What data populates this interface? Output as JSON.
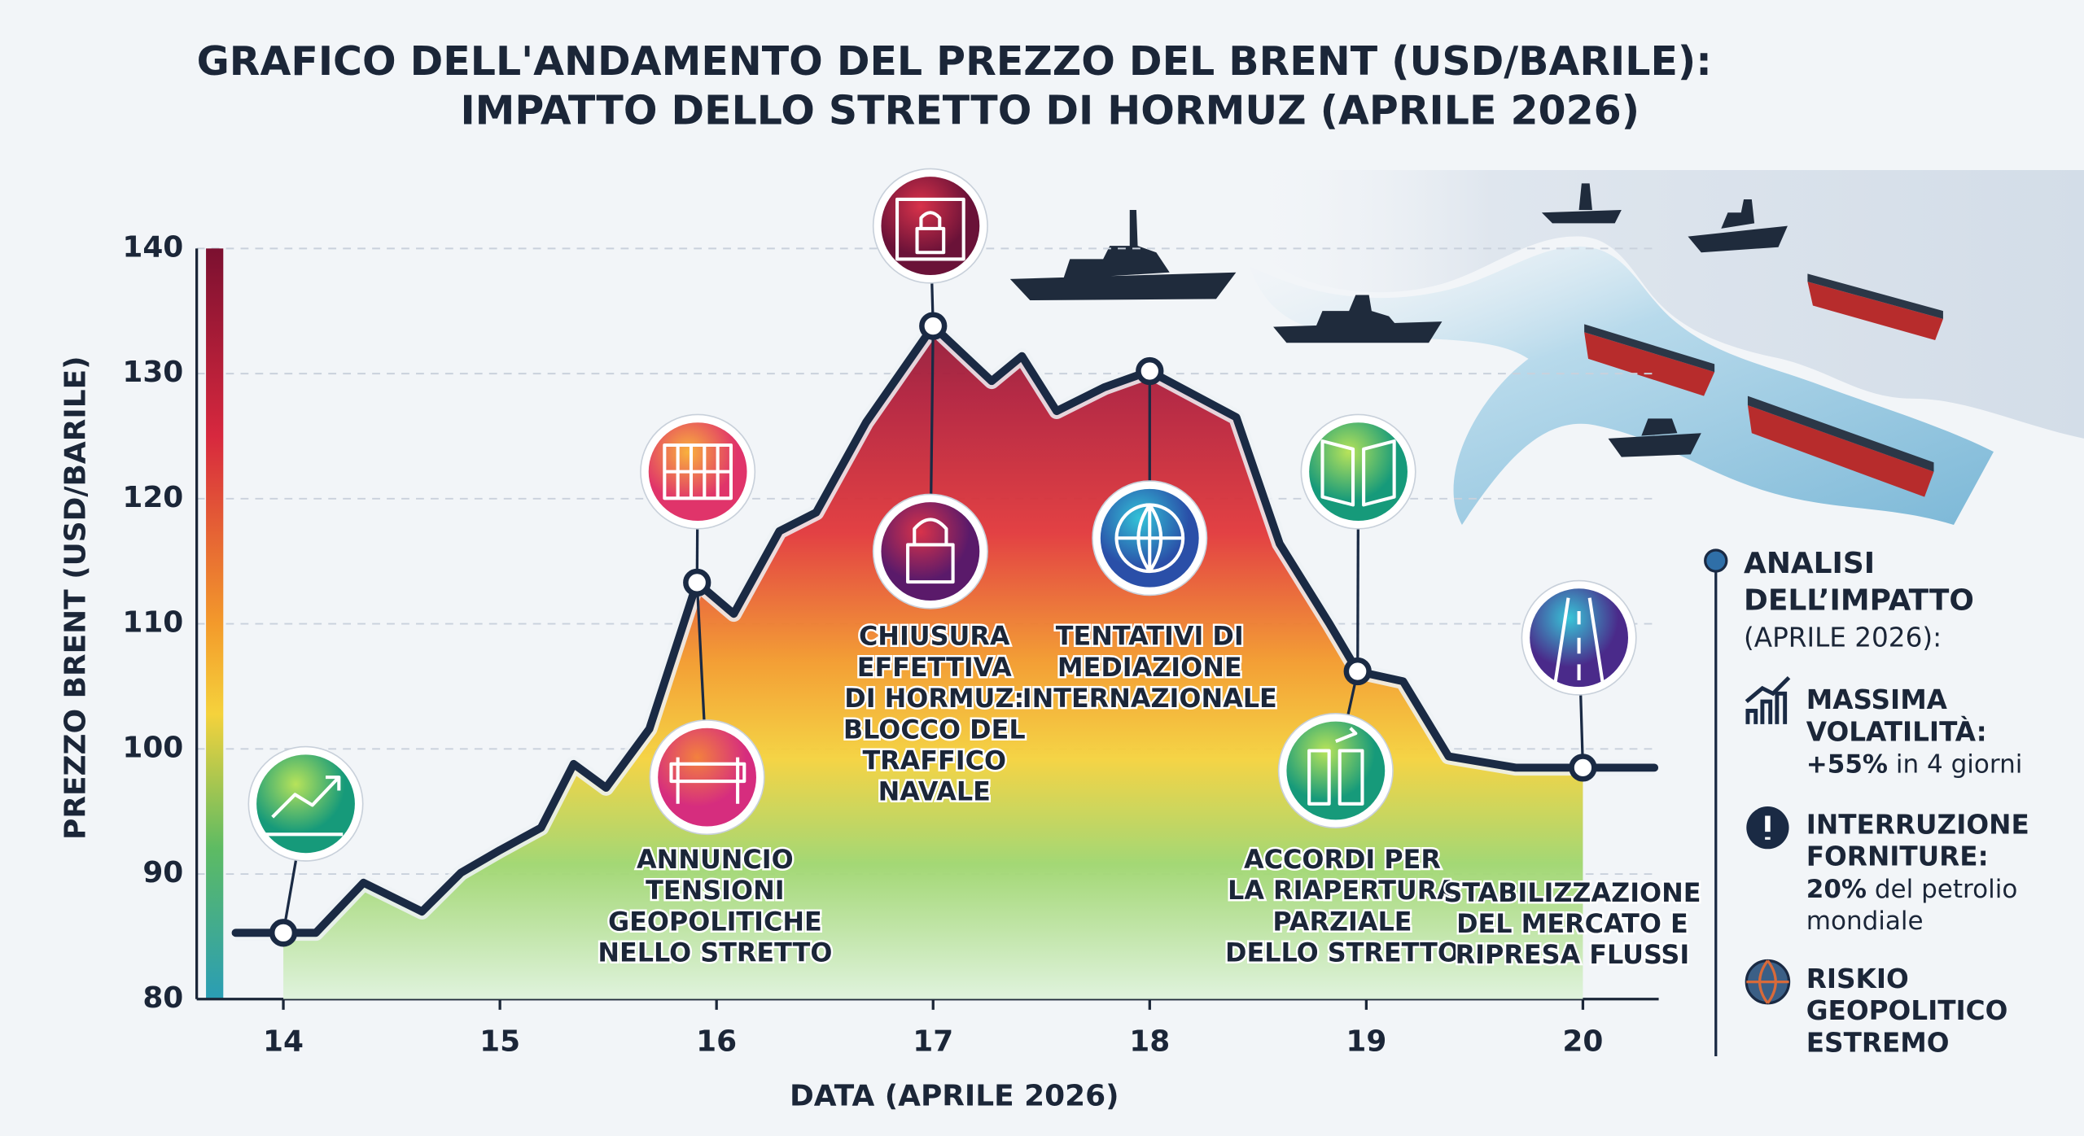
{
  "chart_data": {
    "type": "line",
    "title": [
      "GRAFICO DELL'ANDAMENTO DEL PREZZO DEL BRENT (USD/BARILE):",
      "IMPATTO DELLO STRETTO DI HORMUZ (APRILE 2026)"
    ],
    "x_label": "DATA (APRILE 2026)",
    "y_label": "PREZZO BRENT (USD/BARILE)",
    "x": [
      13.78,
      14,
      14.15,
      14.37,
      14.64,
      14.82,
      15,
      15.19,
      15.34,
      15.49,
      15.69,
      15.91,
      16.08,
      16.29,
      16.46,
      16.69,
      17,
      17.27,
      17.41,
      17.57,
      17.79,
      18,
      18.4,
      18.6,
      18.83,
      18.96,
      19.17,
      19.38,
      19.69,
      20,
      20.33
    ],
    "values": [
      85.3,
      85.3,
      85.3,
      89.3,
      87.0,
      90.1,
      91.9,
      93.7,
      98.8,
      96.9,
      101.6,
      113.3,
      110.8,
      117.4,
      118.9,
      126.1,
      133.8,
      129.4,
      131.4,
      127.0,
      128.9,
      130.2,
      126.5,
      116.4,
      110.0,
      106.2,
      105.4,
      99.4,
      98.5,
      98.5,
      98.5
    ],
    "color": "#1a2a44",
    "xlim": [
      13.6,
      20.35
    ],
    "xticks": [
      14,
      15,
      16,
      17,
      18,
      19,
      20
    ],
    "ylim": [
      80,
      140
    ],
    "yticks": [
      80,
      90,
      100,
      110,
      120,
      130,
      140
    ],
    "grid": true,
    "annotations": [
      [
        "ANNUNCIO",
        "TENSIONI",
        "GEOPOLITICHE",
        "NELLO STRETTO"
      ],
      [
        "CHIUSURA",
        "EFFETTIVA",
        "DI HORMUZ:",
        "BLOCCO DEL",
        "TRAFFICO",
        "NAVALE"
      ],
      [
        "TENTATIVI DI",
        "MEDIAZIONE",
        "INTERNAZIONALE"
      ],
      [
        "ACCORDI PER",
        "LA RIAPERTURA",
        "PARZIALE",
        "DELLO STRETTO"
      ],
      [
        "STABILIZZAZIONE",
        "DEL MERCATO E",
        "RIPRESA FLUSSI"
      ]
    ],
    "side_panel": {
      "heading": [
        "ANALISI",
        "DELL’IMPATTO"
      ],
      "subheading": "(APRILE 2026):",
      "items": [
        {
          "lines": [
            "MASSIMA",
            "VOLATILITÀ:"
          ],
          "highlight": "+55%",
          "detail": [
            "in 4 giorni"
          ]
        },
        {
          "lines": [
            "INTERRUZIONE",
            "FORNITURE:"
          ],
          "highlight": "20%",
          "detail": [
            "del petrolio",
            "mondiale"
          ]
        },
        {
          "lines": [
            "RISKIO",
            "GEOPOLITICO",
            "ESTREMO"
          ]
        }
      ]
    }
  }
}
